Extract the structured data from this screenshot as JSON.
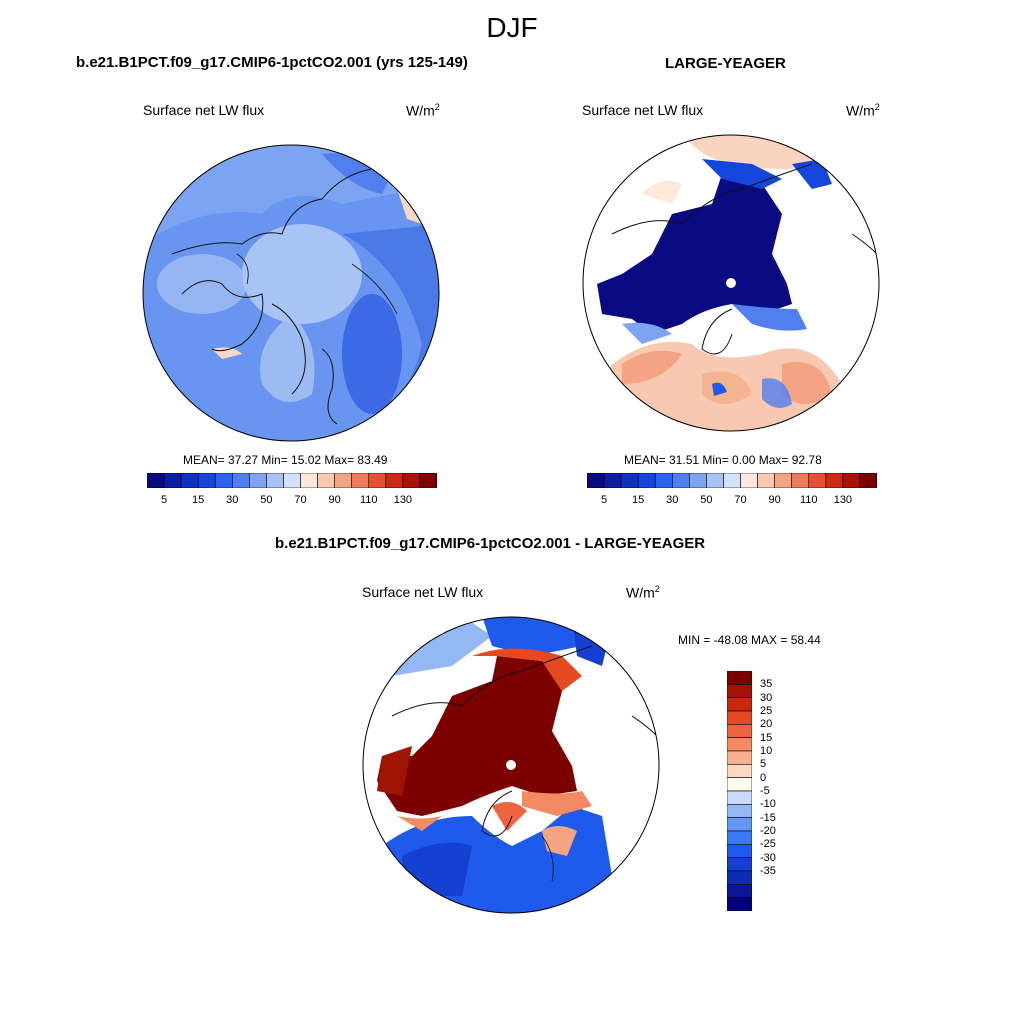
{
  "title": "DJF",
  "panels": [
    {
      "title": "b.e21.B1PCT.f09_g17.CMIP6-1pctCO2.001 (yrs 125-149)",
      "variable": "Surface net LW flux",
      "units_base": "W/m",
      "units_exp": "2",
      "stats": "MEAN=  37.27  Min=  15.02  Max=  83.49"
    },
    {
      "title": "LARGE-YEAGER",
      "variable": "Surface net LW flux",
      "units_base": "W/m",
      "units_exp": "2",
      "stats": "MEAN=  31.51  Min=   0.00  Max=  92.78"
    },
    {
      "title": "b.e21.B1PCT.f09_g17.CMIP6-1pctCO2.001 - LARGE-YEAGER",
      "variable": "Surface net LW flux",
      "units_base": "W/m",
      "units_exp": "2",
      "stats": "MIN = -48.08 MAX =  58.44"
    }
  ],
  "colorbar_fields": {
    "colors": [
      "#0a0a82",
      "#0c1ea0",
      "#0d32be",
      "#1446dc",
      "#2864f0",
      "#5080f0",
      "#7ca4f0",
      "#a8c4f4",
      "#d2e2fa",
      "#fde8dc",
      "#f9c8b0",
      "#f4a482",
      "#ee7c5a",
      "#e45232",
      "#cc2a14",
      "#aa1205",
      "#7d0000"
    ],
    "tick_labels": [
      "5",
      "15",
      "30",
      "50",
      "70",
      "90",
      "110",
      "130"
    ]
  },
  "colorbar_diff": {
    "colors": [
      "#00007f",
      "#0a1696",
      "#0d2cb4",
      "#1440d2",
      "#1e5aec",
      "#3c78f2",
      "#6496f2",
      "#94b8f4",
      "#c8daf8",
      "#fffcee",
      "#fcd8c0",
      "#f8b08e",
      "#f48a64",
      "#ec6440",
      "#e64820",
      "#c82a0c",
      "#a01404",
      "#7d0000"
    ],
    "tick_labels": [
      "35",
      "30",
      "25",
      "20",
      "15",
      "10",
      "5",
      "0",
      "-5",
      "-10",
      "-15",
      "-20",
      "-25",
      "-30",
      "-35"
    ]
  }
}
